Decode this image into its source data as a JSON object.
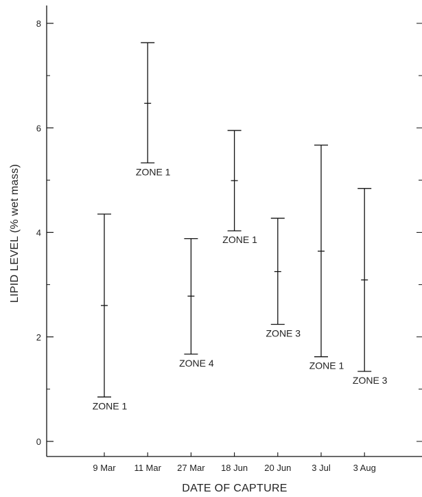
{
  "chart_data": {
    "type": "errorbar",
    "title": "",
    "xlabel": "DATE OF CAPTURE",
    "ylabel": "LIPID LEVEL (% wet mass)",
    "ylim": [
      0,
      8
    ],
    "yticks": [
      0,
      2,
      4,
      6,
      8
    ],
    "grid": false,
    "categories": [
      "9 Mar",
      "11 Mar",
      "27 Mar",
      "18 Jun",
      "20 Jun",
      "3 Jul",
      "3 Aug"
    ],
    "points": [
      {
        "category": "9 Mar",
        "mean": 2.6,
        "low": 0.85,
        "high": 4.35,
        "label": "ZONE 1"
      },
      {
        "category": "11 Mar",
        "mean": 6.47,
        "low": 5.33,
        "high": 7.63,
        "label": "ZONE 1"
      },
      {
        "category": "27 Mar",
        "mean": 2.78,
        "low": 1.67,
        "high": 3.88,
        "label": "ZONE 4"
      },
      {
        "category": "18 Jun",
        "mean": 4.99,
        "low": 4.03,
        "high": 5.95,
        "label": "ZONE 1"
      },
      {
        "category": "20 Jun",
        "mean": 3.25,
        "low": 2.24,
        "high": 4.27,
        "label": "ZONE 3"
      },
      {
        "category": "3 Jul",
        "mean": 3.64,
        "low": 1.62,
        "high": 5.67,
        "label": "ZONE 1"
      },
      {
        "category": "3 Aug",
        "mean": 3.09,
        "low": 1.34,
        "high": 4.84,
        "label": "ZONE 3"
      }
    ]
  }
}
